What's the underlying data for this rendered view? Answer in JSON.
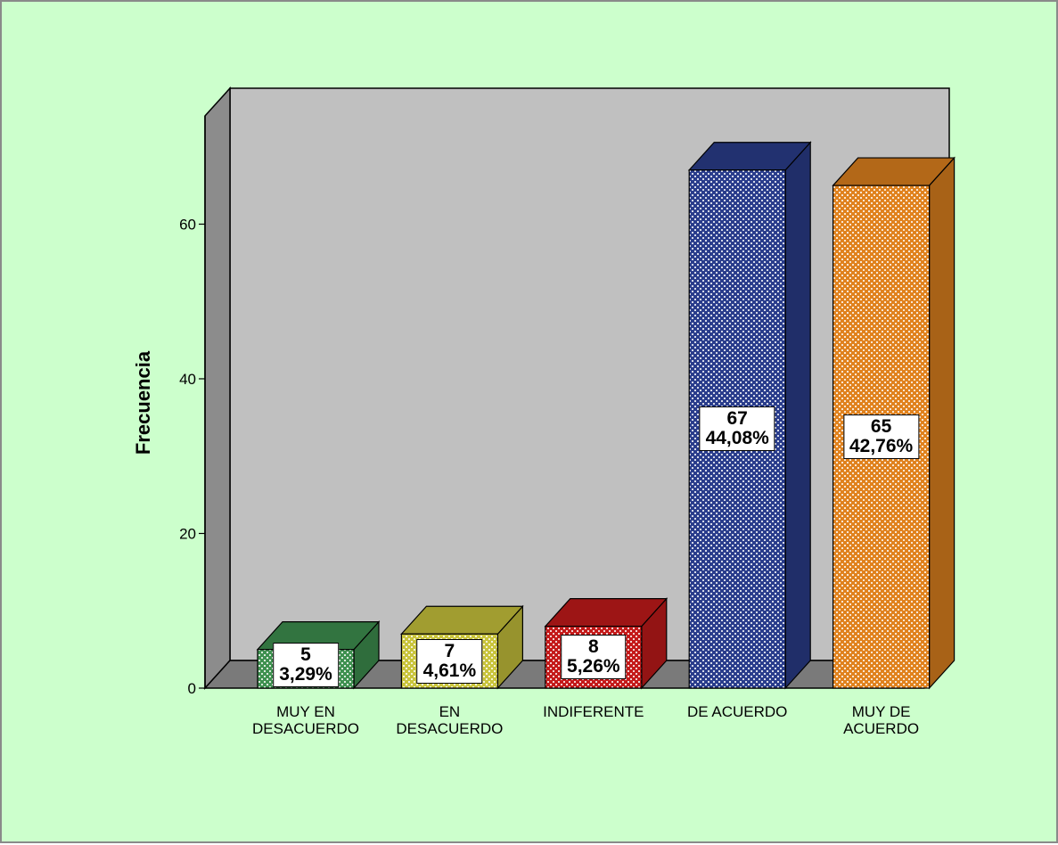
{
  "chart_data": {
    "type": "bar3d",
    "y_label": "Frecuencia",
    "categories": [
      "MUY EN\nDESACUERDO",
      "EN\nDESACUERDO",
      "INDIFERENTE",
      "DE ACUERDO",
      "MUY DE\nACUERDO"
    ],
    "values": [
      5,
      7,
      8,
      67,
      65
    ],
    "percent_labels": [
      "3,29%",
      "4,61%",
      "5,26%",
      "44,08%",
      "42,76%"
    ],
    "colors": [
      "#3f9150",
      "#c9c43c",
      "#c41a1a",
      "#2a3d8c",
      "#e0821e"
    ],
    "ylim": [
      0,
      74
    ],
    "yticks": [
      0,
      20,
      40,
      60
    ]
  }
}
